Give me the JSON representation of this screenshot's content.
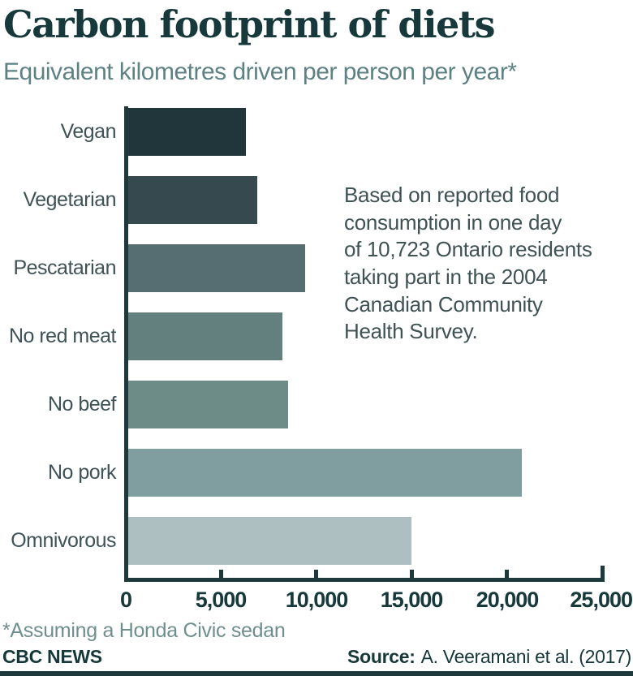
{
  "header": {
    "title": "Carbon footprint of diets",
    "subtitle": "Equivalent kilometres driven per person per year*"
  },
  "annotation": "Based on reported food\nconsumption in one day\nof 10,723 Ontario residents\ntaking part in the 2004\nCanadian Community\nHealth Survey.",
  "chart_data": {
    "type": "bar",
    "orientation": "horizontal",
    "title": "Carbon footprint of diets",
    "xlabel": "Equivalent kilometres driven per person per year",
    "xlim": [
      0,
      25000
    ],
    "grid": false,
    "legend": false,
    "categories": [
      "Vegan",
      "Vegetarian",
      "Pescatarian",
      "No red meat",
      "No beef",
      "No pork",
      "Omnivorous"
    ],
    "values": [
      6300,
      6900,
      9400,
      8200,
      8500,
      20800,
      15000
    ],
    "bar_colors": [
      "#21363b",
      "#36494e",
      "#566d72",
      "#63807f",
      "#6d8c88",
      "#809da0",
      "#aebfc2"
    ],
    "x_ticks": [
      {
        "value": 0,
        "label": "0"
      },
      {
        "value": 5000,
        "label": "5,000"
      },
      {
        "value": 10000,
        "label": "10,000"
      },
      {
        "value": 15000,
        "label": "15,000"
      },
      {
        "value": 20000,
        "label": "20,000"
      },
      {
        "value": 25000,
        "label": "25,000"
      }
    ]
  },
  "footer": {
    "footnote": "*Assuming a Honda Civic sedan",
    "brand": "CBC NEWS",
    "source_label": "Source:",
    "source_text": "A. Veeramani et al. (2017)"
  },
  "colors": {
    "title": "#17393b",
    "subtitle": "#5e8183",
    "axis": "#1e393c",
    "category_label": "#3f5356",
    "tick_label": "#17393b",
    "annotation": "#3f5254",
    "footnote": "#6f8e8e",
    "footer_text": "#16383a",
    "bottom_strip": "#1e393c"
  }
}
